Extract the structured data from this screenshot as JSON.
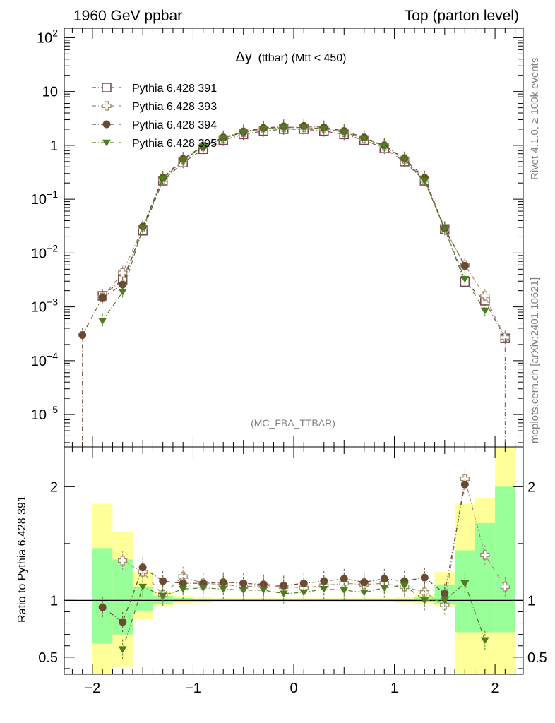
{
  "header": {
    "left": "1960 GeV ppbar",
    "right": "Top (parton level)"
  },
  "side": {
    "rivet": "Rivet 4.1.0, ≥ 100k events",
    "mcplots": "mcplots.cern.ch [arXiv:2401.10621]"
  },
  "chart_data": [
    {
      "type": "scatter",
      "title_main": "Δy",
      "title_sub": "(ttbar) (Mtt < 450)",
      "watermark": "(MC_FBA_TTBAR)",
      "yscale": "log",
      "xlim": [
        -2.28,
        2.28
      ],
      "ylim": [
        2.5e-06,
        150
      ],
      "ytick_labels": [
        {
          "base": "10",
          "exp": "2",
          "v": 100
        },
        {
          "base": "10",
          "exp": "",
          "v": 10
        },
        {
          "base": "1",
          "exp": "",
          "v": 1
        },
        {
          "base": "10",
          "exp": "−1",
          "v": 0.1
        },
        {
          "base": "10",
          "exp": "−2",
          "v": 0.01
        },
        {
          "base": "10",
          "exp": "−3",
          "v": 0.001
        },
        {
          "base": "10",
          "exp": "−4",
          "v": 0.0001
        },
        {
          "base": "10",
          "exp": "−5",
          "v": 1e-05
        }
      ],
      "legend_position": "top-left",
      "x": [
        -2.1,
        -1.9,
        -1.7,
        -1.5,
        -1.3,
        -1.1,
        -0.9,
        -0.7,
        -0.5,
        -0.3,
        -0.1,
        0.1,
        0.3,
        0.5,
        0.7,
        0.9,
        1.1,
        1.3,
        1.5,
        1.7,
        1.9,
        2.1
      ],
      "series": [
        {
          "name": "Pythia 6.428 391",
          "color": "#734852",
          "marker": "open-square",
          "values": [
            null,
            0.0016,
            0.0032,
            0.026,
            0.22,
            0.48,
            0.85,
            1.25,
            1.6,
            1.85,
            2.0,
            2.0,
            1.85,
            1.6,
            1.25,
            0.88,
            0.5,
            0.22,
            0.028,
            0.0029,
            0.0013,
            0.00026
          ]
        },
        {
          "name": "Pythia 6.428 393",
          "color": "#a08a6e",
          "marker": "open-cross",
          "values": [
            null,
            0.0015,
            0.0043,
            0.03,
            0.23,
            0.55,
            0.95,
            1.35,
            1.75,
            2.05,
            2.15,
            2.15,
            2.05,
            1.75,
            1.35,
            0.97,
            0.56,
            0.23,
            0.027,
            0.006,
            0.0016,
            0.00027
          ]
        },
        {
          "name": "Pythia 6.428 394",
          "color": "#6a4a32",
          "marker": "filled-circle",
          "values": [
            0.0003,
            0.0015,
            0.0026,
            0.031,
            0.25,
            0.56,
            0.97,
            1.4,
            1.8,
            2.1,
            2.25,
            2.3,
            2.15,
            1.85,
            1.4,
            1.0,
            0.57,
            0.25,
            0.029,
            0.0058,
            null,
            null
          ]
        },
        {
          "name": "Pythia 6.428 395",
          "color": "#4e7d1f",
          "marker": "filled-triangle-down",
          "values": [
            null,
            0.00055,
            0.0019,
            0.029,
            0.24,
            0.53,
            0.95,
            1.37,
            1.75,
            2.02,
            2.15,
            2.15,
            2.05,
            1.75,
            1.35,
            0.97,
            0.55,
            0.22,
            0.028,
            0.0033,
            0.00085,
            null
          ]
        }
      ]
    },
    {
      "type": "scatter",
      "ylabel": "Ratio to Pythia 6.428 391",
      "xlim": [
        -2.28,
        2.28
      ],
      "ylim": [
        0.35,
        2.35
      ],
      "x_ticks": [
        -2,
        -1,
        0,
        1,
        2
      ],
      "x_tick_labels": [
        "−2",
        "−1",
        "0",
        "1",
        "2"
      ],
      "y_ticks": [
        0.5,
        1,
        2
      ],
      "y_tick_labels": [
        "0.5",
        "1",
        "2"
      ],
      "reference_line": 1,
      "x": [
        -2.1,
        -1.9,
        -1.7,
        -1.5,
        -1.3,
        -1.1,
        -0.9,
        -0.7,
        -0.5,
        -0.3,
        -0.1,
        0.1,
        0.3,
        0.5,
        0.7,
        0.9,
        1.1,
        1.3,
        1.5,
        1.7,
        1.9,
        2.1
      ],
      "bands": {
        "yellow_color": "#ffff99",
        "green_color": "#99ff99",
        "bin_edges": [
          -2.2,
          -2.0,
          -1.8,
          -1.6,
          -1.4,
          -1.2,
          -1.0,
          -0.8,
          -0.6,
          -0.4,
          -0.2,
          0.0,
          0.2,
          0.4,
          0.6,
          0.8,
          1.0,
          1.2,
          1.4,
          1.6,
          1.8,
          2.0,
          2.2
        ],
        "yellow_low": [
          null,
          0.3,
          0.42,
          0.84,
          0.95,
          0.97,
          0.98,
          0.985,
          0.985,
          0.985,
          0.985,
          0.985,
          0.985,
          0.985,
          0.985,
          0.985,
          0.98,
          0.97,
          0.95,
          0.3,
          0.3,
          0.3
        ],
        "yellow_high": [
          null,
          1.85,
          1.6,
          1.25,
          1.07,
          1.04,
          1.03,
          1.02,
          1.02,
          1.02,
          1.02,
          1.02,
          1.02,
          1.02,
          1.02,
          1.02,
          1.03,
          1.05,
          1.25,
          1.85,
          1.9,
          2.35
        ],
        "green_low": [
          null,
          0.62,
          0.7,
          0.91,
          0.97,
          0.985,
          0.99,
          0.993,
          0.993,
          0.993,
          0.993,
          0.993,
          0.993,
          0.993,
          0.993,
          0.993,
          0.99,
          0.985,
          0.97,
          0.72,
          0.72,
          0.72
        ],
        "green_high": [
          null,
          1.46,
          1.36,
          1.12,
          1.04,
          1.02,
          1.015,
          1.01,
          1.01,
          1.01,
          1.01,
          1.01,
          1.01,
          1.01,
          1.01,
          1.01,
          1.015,
          1.025,
          1.14,
          1.44,
          1.68,
          2.0
        ]
      },
      "series": [
        {
          "name": "Pythia 6.428 393",
          "color": "#a08a6e",
          "marker": "open-cross",
          "values": [
            null,
            null,
            1.35,
            1.25,
            1.05,
            1.21,
            1.15,
            1.14,
            1.12,
            1.13,
            1.12,
            1.11,
            1.13,
            1.15,
            1.14,
            1.15,
            1.12,
            1.07,
            0.96,
            2.07,
            1.4,
            1.12
          ]
        },
        {
          "name": "Pythia 6.428 394",
          "color": "#6a4a32",
          "marker": "filled-circle",
          "values": [
            null,
            0.94,
            0.81,
            1.29,
            1.17,
            1.15,
            1.15,
            1.16,
            1.15,
            1.14,
            1.13,
            1.15,
            1.17,
            1.19,
            1.16,
            1.19,
            1.17,
            1.2,
            1.06,
            2.02,
            null,
            null
          ]
        },
        {
          "name": "Pythia 6.428 395",
          "color": "#4e7d1f",
          "marker": "filled-triangle-down",
          "values": [
            null,
            null,
            0.57,
            1.12,
            1.04,
            1.1,
            1.11,
            1.1,
            1.09,
            1.09,
            1.06,
            1.07,
            1.1,
            1.09,
            1.07,
            1.11,
            1.13,
            1.0,
            1.0,
            1.15,
            0.65,
            null
          ]
        }
      ]
    }
  ]
}
